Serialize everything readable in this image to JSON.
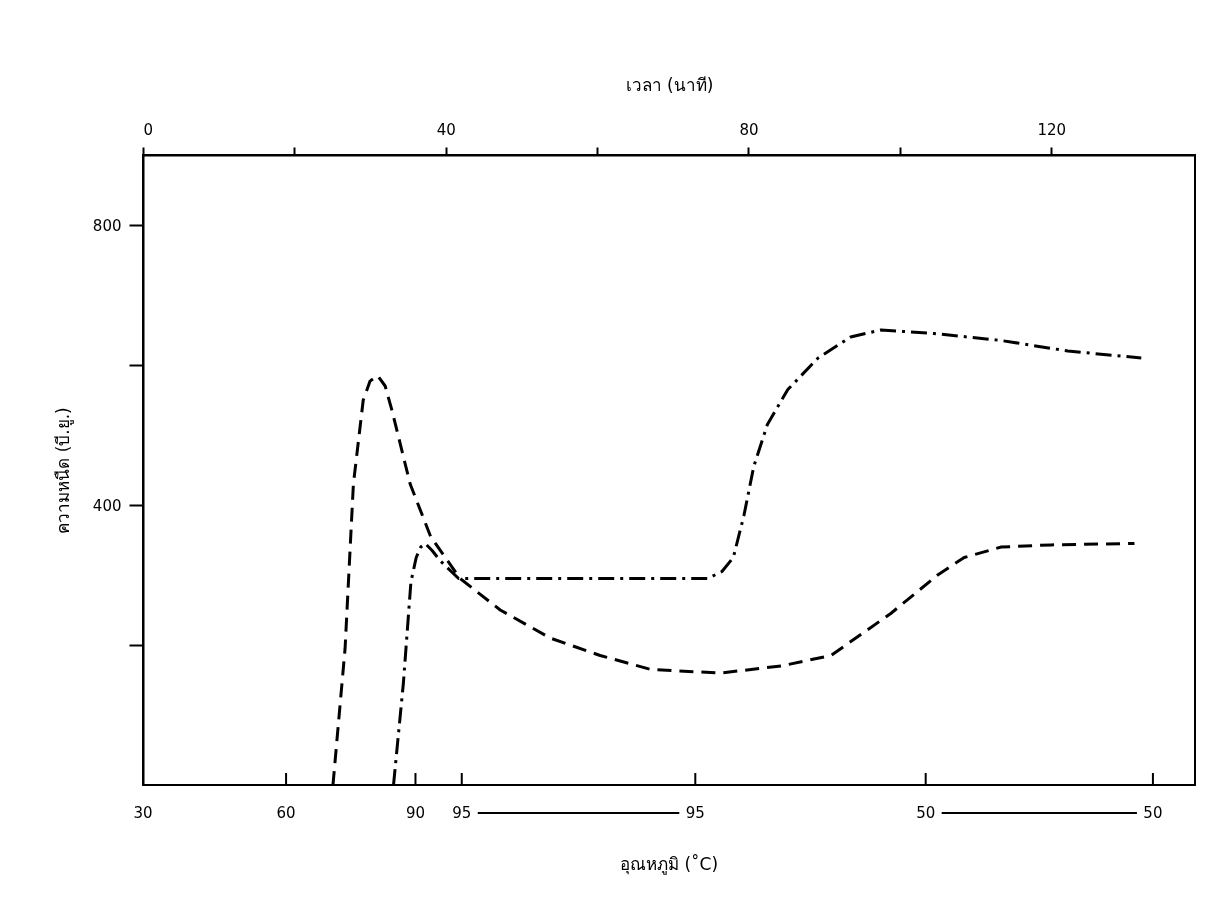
{
  "chart_data": {
    "type": "line",
    "xlabel": "เวลา (นาที)",
    "ylabel": "ความหนืด (บี.ยู.)",
    "xlim": [
      0,
      139
    ],
    "ylim": [
      0,
      900
    ],
    "xticks": [
      0,
      {
        "value": 20,
        "label": null
      },
      40,
      {
        "value": 60,
        "label": null
      },
      80,
      {
        "value": 100,
        "label": null
      },
      120
    ],
    "yticks": [
      {
        "value": 200,
        "label": null
      },
      400,
      {
        "value": 600,
        "label": null
      },
      800
    ],
    "grid": false,
    "legend": false,
    "annotations": [
      "30",
      "60",
      "90",
      "95",
      "95",
      "50",
      "50",
      "อุณหภูมิ (˚C)"
    ],
    "series": [
      {
        "color": "#000000",
        "line_style": "dashed",
        "x": [
          25.1,
          26.7,
          27.8,
          29.1,
          30.0,
          31.0,
          32.0,
          32.9,
          35.3,
          38.0,
          41.9,
          47.2,
          53.8,
          60.4,
          67.1,
          76.3,
          84.3,
          90.9,
          98.8,
          105.0,
          108.5,
          113.4,
          120.0,
          131.0
        ],
        "values": [
          0,
          195,
          430,
          550,
          577,
          585,
          570,
          535,
          430,
          355,
          295,
          250,
          210,
          185,
          165,
          160,
          170,
          185,
          245,
          300,
          325,
          340,
          343,
          345
        ]
      },
      {
        "color": "#000000",
        "line_style": "dashdot",
        "x": [
          33.1,
          34.4,
          35.4,
          36.1,
          36.7,
          37.3,
          38.2,
          39.3,
          41.7,
          74.6,
          76.5,
          78.0,
          79.4,
          80.7,
          82.5,
          85.2,
          89.2,
          93.5,
          97.5,
          104.5,
          113.4,
          122.2,
          131.9
        ],
        "values": [
          0,
          145,
          290,
          325,
          340,
          345,
          335,
          320,
          295,
          295,
          305,
          325,
          385,
          455,
          515,
          565,
          610,
          640,
          650,
          645,
          635,
          620,
          610
        ]
      }
    ]
  }
}
